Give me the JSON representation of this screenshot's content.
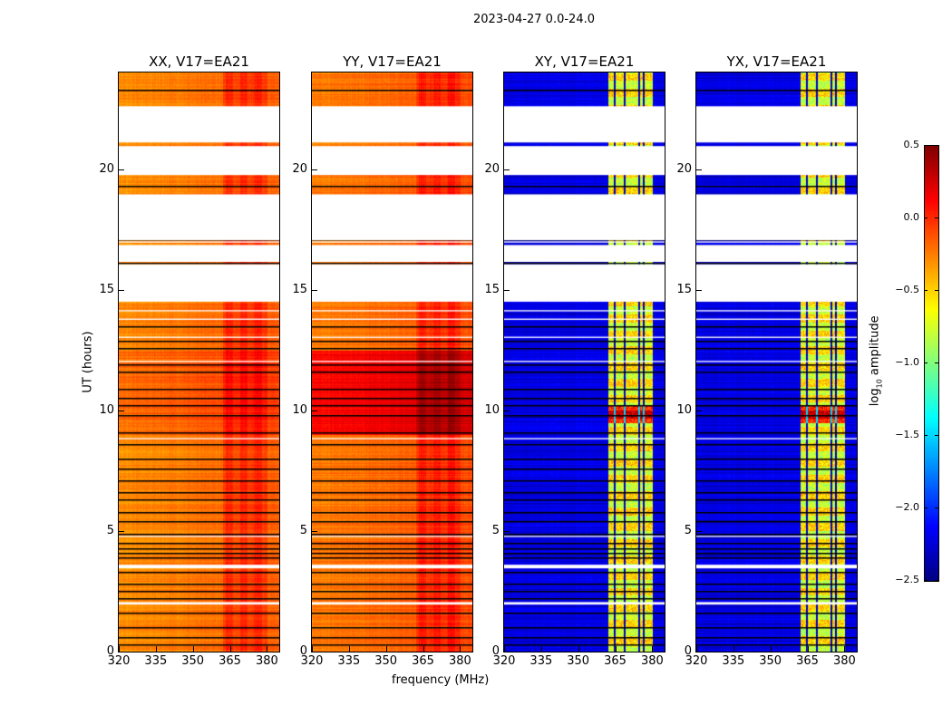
{
  "chart_data": {
    "type": "heatmap",
    "title": "2023-04-27 0.0-24.0",
    "xlabel": "frequency (MHz)",
    "ylabel": "UT (hours)",
    "xlim": [
      320,
      385
    ],
    "ylim": [
      0,
      24
    ],
    "xticks": [
      "320",
      "335",
      "350",
      "365",
      "380"
    ],
    "xtick_values": [
      320,
      335,
      350,
      365,
      380
    ],
    "yticks": [
      "0",
      "5",
      "10",
      "15",
      "20"
    ],
    "ytick_values": [
      0,
      5,
      10,
      15,
      20
    ],
    "colormap": "jet",
    "colorbar": {
      "label": "log10 amplitude",
      "label_main": "log",
      "label_sub": "10",
      "label_tail": " amplitude",
      "range": [
        -2.5,
        0.5
      ],
      "ticks": [
        "0.5",
        "0.0",
        "−0.5",
        "−1.0",
        "−1.5",
        "−2.0",
        "−2.5"
      ],
      "tick_values": [
        0.5,
        0.0,
        -0.5,
        -1.0,
        -1.5,
        -2.0,
        -2.5
      ]
    },
    "flagged_hours": [
      [
        21.1,
        22.6
      ],
      [
        19.75,
        20.95
      ],
      [
        17.05,
        18.95
      ],
      [
        16.15,
        16.85
      ],
      [
        14.5,
        16.05
      ],
      [
        16.95,
        17.0
      ],
      [
        1.95,
        2.05
      ],
      [
        3.45,
        3.6
      ],
      [
        4.75,
        4.8
      ],
      [
        8.8,
        8.85
      ],
      [
        12.0,
        12.05
      ],
      [
        13.0,
        13.05
      ],
      [
        13.75,
        13.8
      ],
      [
        14.1,
        14.15
      ]
    ],
    "blank_lines_hours": [
      23.3,
      19.3,
      17.1,
      16.1,
      13.5,
      12.9,
      12.6,
      11.9,
      11.6,
      10.9,
      10.5,
      10.2,
      9.8,
      9.1,
      8.6,
      8.0,
      7.6,
      7.1,
      6.6,
      6.3,
      5.8,
      5.4,
      4.9,
      4.5,
      4.3,
      4.1,
      3.9,
      3.3,
      2.8,
      2.5,
      2.2,
      1.6,
      1.0,
      0.6,
      0.3
    ],
    "series": [
      {
        "name": "XX, V17=EA21",
        "base": -0.3,
        "rfi_band_mhz": [
          362,
          380
        ],
        "rfi_level": -0.15,
        "bright_hours": [
          9.0,
          12.5
        ],
        "bright_level": -0.1
      },
      {
        "name": "YY, V17=EA21",
        "base": -0.25,
        "rfi_band_mhz": [
          362,
          380
        ],
        "rfi_level": 0.1,
        "bright_hours": [
          9.0,
          12.5
        ],
        "bright_level": 0.15
      },
      {
        "name": "XY, V17=EA21",
        "base": -2.2,
        "rfi_band_mhz": [
          362,
          380
        ],
        "rfi_level": -0.8,
        "bright_hours": [
          9.5,
          10.2
        ],
        "bright_level": -0.1
      },
      {
        "name": "YX, V17=EA21",
        "base": -2.2,
        "rfi_band_mhz": [
          362,
          380
        ],
        "rfi_level": -0.8,
        "bright_hours": [
          9.5,
          10.2
        ],
        "bright_level": -0.1
      }
    ]
  }
}
